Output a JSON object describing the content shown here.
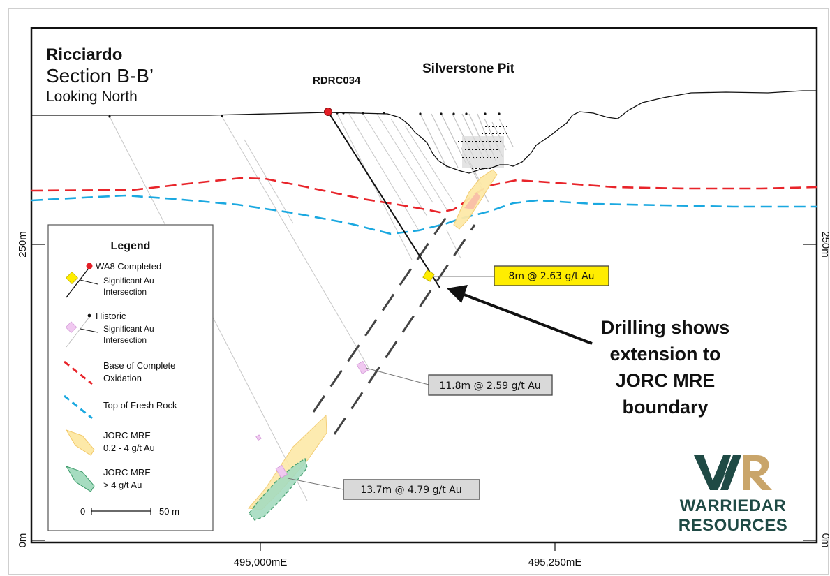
{
  "title": {
    "name": "Ricciardo",
    "section": "Section B-B’",
    "view": "Looking North"
  },
  "labels": {
    "pit": "Silverstone Pit",
    "hole": "RDRC034"
  },
  "axes": {
    "x_ticks": [
      "495,000mE",
      "495,250mE"
    ],
    "y_left_ticks": [
      "250m",
      "0m"
    ],
    "y_right_ticks": [
      "250m",
      "0m"
    ]
  },
  "legend": {
    "heading": "Legend",
    "wa8_completed": "WA8 Completed",
    "wa8_sig_line1": "Significant Au",
    "wa8_sig_line2": "Intersection",
    "historic": "Historic",
    "hist_sig_line1": "Significant Au",
    "hist_sig_line2": "Intersection",
    "boco_line1": "Base of Complete",
    "boco_line2": "Oxidation",
    "tofr": "Top of Fresh Rock",
    "mre_low_line1": "JORC MRE",
    "mre_low_line2": "0.2 - 4 g/t Au",
    "mre_high_line1": "JORC MRE",
    "mre_high_line2": ">  4 g/t Au",
    "scale_start": "0",
    "scale_end": "50 m"
  },
  "intercepts": [
    {
      "text": "8m @ 2.63 g/t Au"
    },
    {
      "text": "11.8m @ 2.59 g/t Au"
    },
    {
      "text": "13.7m @ 4.79 g/t Au"
    }
  ],
  "annotation": {
    "line1": "Drilling shows",
    "line2": "extension to",
    "line3": "JORC MRE",
    "line4": "boundary"
  },
  "logo": {
    "line1": "WARRIEDAR",
    "line2": "RESOURCES",
    "mark_w": "W",
    "mark_r": "R"
  },
  "colors": {
    "boco": "#e8242a",
    "tofr": "#1aa8e0",
    "completed_hole": "#e41e26",
    "sig_intercept": "#ffed00",
    "historic_intercept": "#f0c8f0",
    "mre_low": "#fde9a8",
    "mre_high": "#a6dcc0",
    "logo_dark": "#1f4a45",
    "logo_gold": "#c9a56a"
  }
}
